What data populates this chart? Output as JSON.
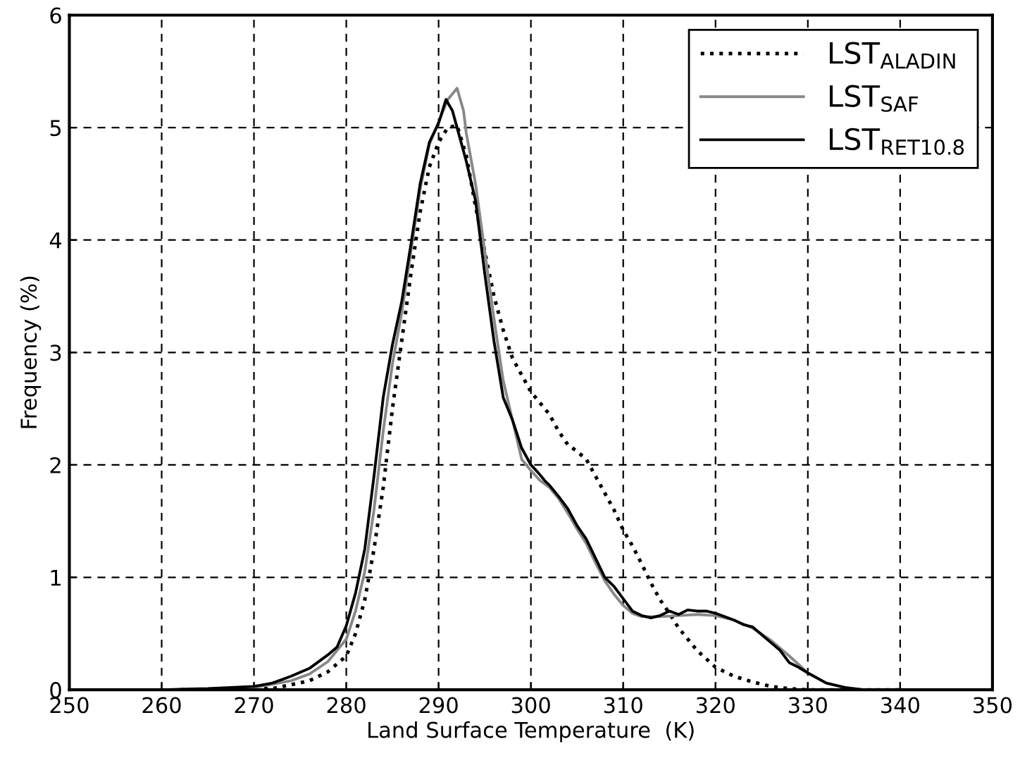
{
  "chart_data": {
    "type": "line",
    "xlabel": "Land Surface Temperature  (K)",
    "ylabel": "Frequency (%)",
    "xlim": [
      250,
      350
    ],
    "ylim": [
      0,
      6
    ],
    "xticks": [
      250,
      260,
      270,
      280,
      290,
      300,
      310,
      320,
      330,
      340,
      350
    ],
    "yticks": [
      0,
      1,
      2,
      3,
      4,
      5,
      6
    ],
    "grid": true,
    "legend": "top right",
    "marker": "none",
    "series": [
      {
        "name": "LST$_{ALADIN}$",
        "color": "#000000",
        "line_style": "dotted",
        "x": [
          262,
          270,
          272,
          276,
          278,
          280,
          281,
          282,
          283,
          284,
          285,
          286,
          287,
          288,
          289,
          290,
          291,
          292,
          293,
          294,
          295,
          296,
          297,
          298,
          299,
          300,
          301,
          302,
          303,
          304,
          305,
          306,
          307,
          308,
          309,
          310,
          311,
          312,
          313,
          314,
          315,
          316,
          317,
          318,
          320,
          322,
          324,
          326,
          328,
          330,
          340
        ],
        "values": [
          0,
          0.01,
          0.01,
          0.08,
          0.16,
          0.3,
          0.5,
          0.8,
          1.25,
          1.8,
          2.5,
          3.1,
          3.7,
          4.25,
          4.65,
          4.87,
          5.0,
          5.02,
          4.75,
          4.3,
          3.9,
          3.5,
          3.2,
          2.95,
          2.8,
          2.65,
          2.55,
          2.45,
          2.3,
          2.18,
          2.12,
          2.05,
          1.9,
          1.75,
          1.6,
          1.42,
          1.28,
          1.12,
          0.95,
          0.8,
          0.68,
          0.55,
          0.45,
          0.35,
          0.2,
          0.12,
          0.07,
          0.03,
          0.01,
          0,
          0
        ]
      },
      {
        "name": "LST$_{SAF}$",
        "color": "#888888",
        "line_style": "solid",
        "x": [
          262,
          270,
          274,
          276,
          278,
          280,
          281,
          282,
          283,
          284,
          285,
          286,
          287,
          288,
          289,
          290,
          291,
          292,
          292.7,
          293,
          294,
          295,
          296,
          297,
          298,
          299,
          300,
          301,
          302,
          303,
          304,
          305,
          306,
          307,
          308,
          309,
          310,
          311,
          312,
          314,
          316,
          318,
          320,
          322,
          324,
          326,
          328,
          330,
          332,
          334,
          336,
          340
        ],
        "values": [
          0,
          0.02,
          0.08,
          0.14,
          0.25,
          0.45,
          0.7,
          1.05,
          1.6,
          2.3,
          2.9,
          3.35,
          3.9,
          4.45,
          4.85,
          5.05,
          5.25,
          5.35,
          5.15,
          4.95,
          4.5,
          3.9,
          3.3,
          2.75,
          2.4,
          2.05,
          1.95,
          1.86,
          1.8,
          1.7,
          1.57,
          1.43,
          1.3,
          1.13,
          0.97,
          0.85,
          0.75,
          0.68,
          0.65,
          0.65,
          0.66,
          0.67,
          0.66,
          0.62,
          0.55,
          0.44,
          0.3,
          0.15,
          0.06,
          0.02,
          0,
          0
        ]
      },
      {
        "name": "LST$_{RET10.8}$",
        "color": "#000000",
        "line_style": "solid",
        "x": [
          260,
          265,
          270,
          272,
          274,
          276,
          278,
          279,
          280,
          281,
          282,
          283,
          284,
          285,
          286,
          287,
          288,
          289,
          290,
          290.8,
          291.5,
          292,
          293,
          294,
          295,
          296,
          297,
          298,
          299,
          300,
          300.8,
          301.5,
          302,
          303,
          304,
          305,
          306,
          307,
          308,
          309,
          310,
          311,
          312,
          313,
          314,
          315,
          316,
          317,
          318,
          319,
          320,
          321,
          322,
          323,
          324,
          325,
          326,
          327,
          328,
          329,
          330,
          332,
          334,
          336,
          340
        ],
        "values": [
          0,
          0.01,
          0.03,
          0.06,
          0.12,
          0.19,
          0.31,
          0.38,
          0.57,
          0.86,
          1.25,
          1.9,
          2.6,
          3.07,
          3.45,
          3.96,
          4.5,
          4.87,
          5.04,
          5.25,
          5.15,
          5.0,
          4.7,
          4.35,
          3.7,
          3.1,
          2.6,
          2.4,
          2.15,
          2.0,
          1.93,
          1.86,
          1.82,
          1.72,
          1.61,
          1.46,
          1.34,
          1.17,
          1.0,
          0.92,
          0.81,
          0.7,
          0.66,
          0.64,
          0.66,
          0.7,
          0.67,
          0.71,
          0.7,
          0.7,
          0.68,
          0.65,
          0.62,
          0.58,
          0.56,
          0.49,
          0.42,
          0.35,
          0.24,
          0.2,
          0.15,
          0.06,
          0.02,
          0,
          0
        ]
      }
    ]
  }
}
